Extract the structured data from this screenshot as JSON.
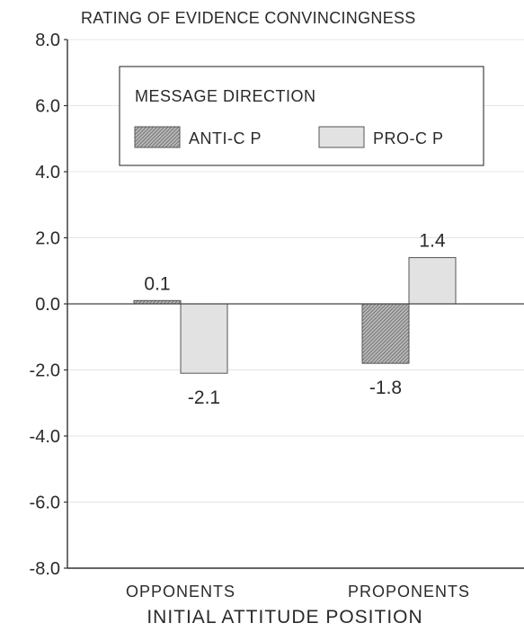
{
  "chart_data": {
    "type": "bar",
    "title": "RATING OF EVIDENCE CONVINCINGNESS",
    "xlabel": "INITIAL ATTITUDE POSITION",
    "ylabel": "",
    "categories": [
      "OPPONENTS",
      "PROPONENTS"
    ],
    "ylim": [
      -8.0,
      8.0
    ],
    "yticks": [
      8.0,
      6.0,
      4.0,
      2.0,
      0.0,
      -2.0,
      -4.0,
      -6.0,
      -8.0
    ],
    "ytick_labels": [
      "8.0",
      "6.0",
      "4.0",
      "2.0",
      "0.0",
      "-2.0",
      "-4.0",
      "-6.0",
      "-8.0"
    ],
    "grid": true,
    "legend": {
      "title": "MESSAGE DIRECTION",
      "placement": "top-center"
    },
    "series": [
      {
        "name": "ANTI-C P",
        "values": [
          0.1,
          -1.8
        ],
        "labels": [
          "0.1",
          "-1.8"
        ],
        "fill": "hatched-dark",
        "color": "#9a9a9a"
      },
      {
        "name": "PRO-C P",
        "values": [
          -2.1,
          1.4
        ],
        "labels": [
          "-2.1",
          "1.4"
        ],
        "fill": "solid-light",
        "color": "#e2e2e2"
      }
    ]
  }
}
